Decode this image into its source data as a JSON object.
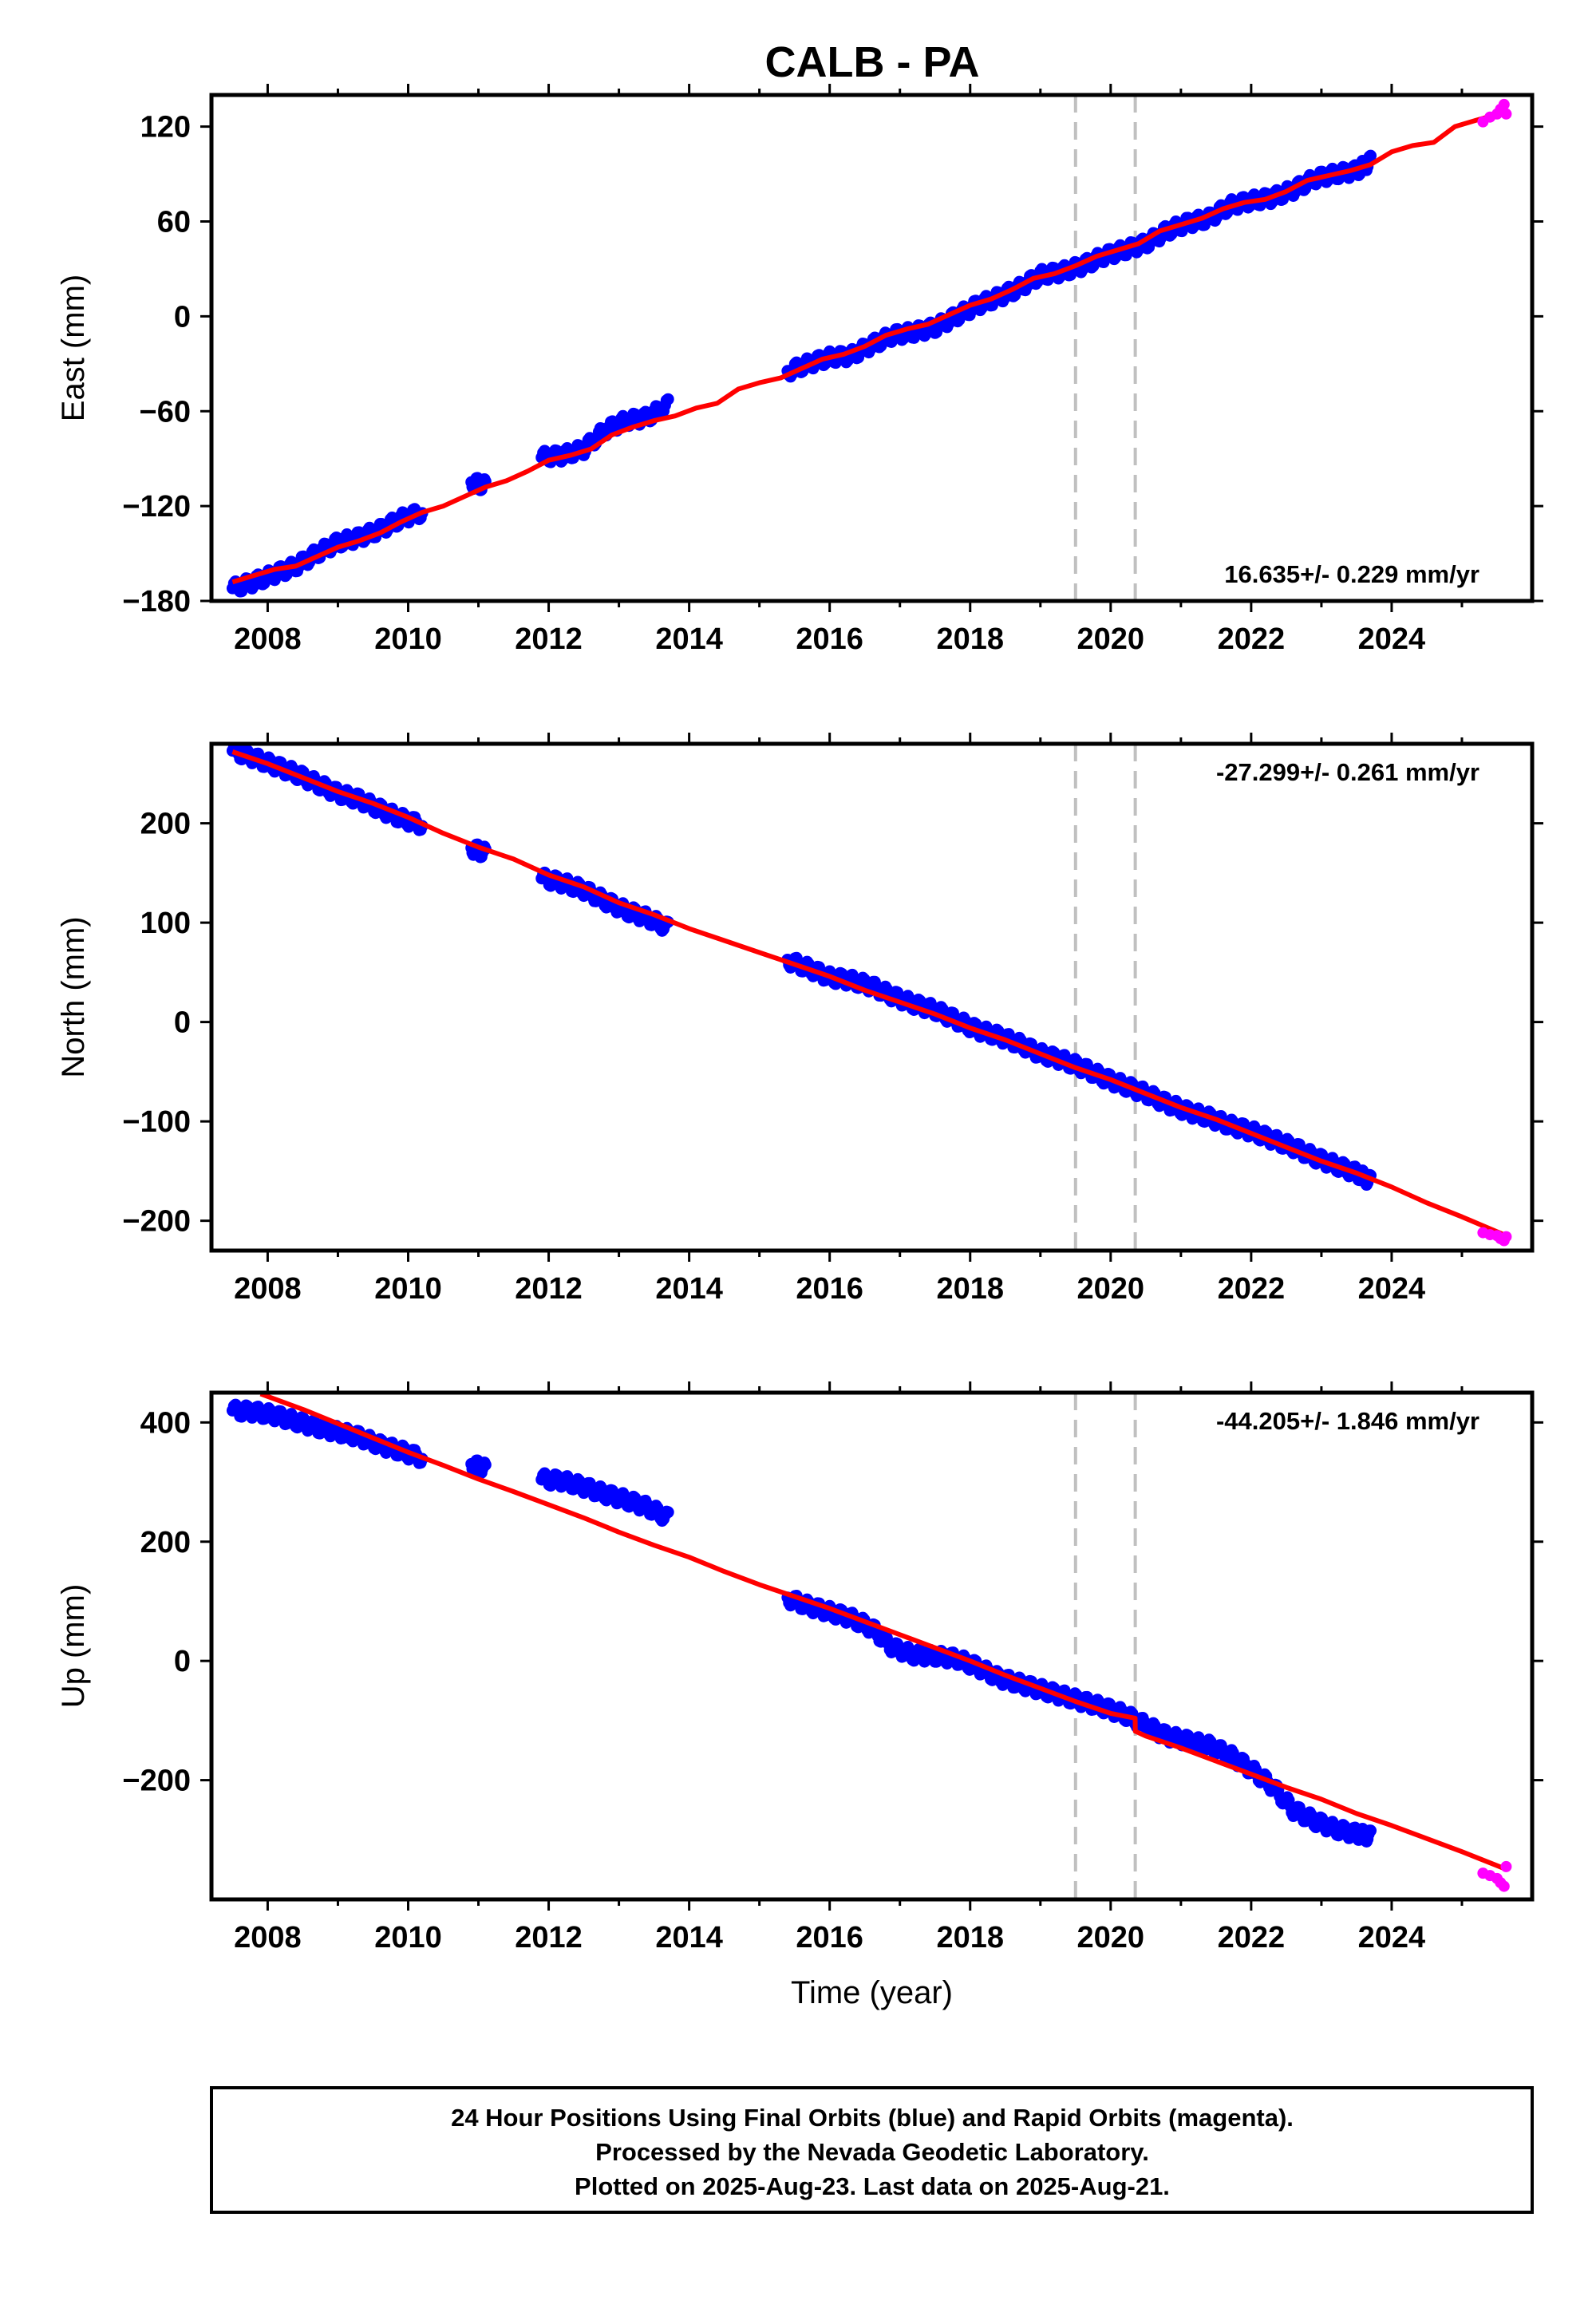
{
  "title": "CALB - PA",
  "colors": {
    "final": "#0000ff",
    "rapid": "#ff00ff",
    "model": "#ff0000",
    "event": "#c0c0c0"
  },
  "footer": {
    "lines": [
      "24 Hour Positions Using Final Orbits (blue) and Rapid Orbits (magenta).",
      "Processed by the Nevada Geodetic Laboratory.",
      "Plotted on 2025-Aug-23. Last data on 2025-Aug-21."
    ]
  },
  "chart_data": [
    {
      "type": "scatter",
      "ylabel": "East (mm)",
      "xlabel": "",
      "xlim": [
        2007.2,
        2026.0
      ],
      "ylim": [
        -180,
        140
      ],
      "xticks": [
        2008,
        2010,
        2012,
        2014,
        2016,
        2018,
        2020,
        2022,
        2024
      ],
      "xtick_labels": [
        "2008",
        "2010",
        "2012",
        "2014",
        "2016",
        "2018",
        "2020",
        "2022",
        "2024"
      ],
      "yticks": [
        -180,
        -120,
        -60,
        0,
        60,
        120
      ],
      "ytick_labels": [
        "−180",
        "−120",
        "−60",
        "0",
        "60",
        "120"
      ],
      "rate": "16.635+/- 0.229 mm/yr",
      "rate_position": "bottom-right",
      "event_lines": [
        2019.5,
        2020.35
      ],
      "final_segments": [
        {
          "x": [
            2007.5,
            2007.8,
            2008.1,
            2008.4,
            2008.7,
            2009.0,
            2009.3,
            2009.6,
            2009.9,
            2010.2
          ],
          "y": [
            -172,
            -168,
            -163,
            -158,
            -150,
            -143,
            -140,
            -135,
            -128,
            -124
          ]
        },
        {
          "x": [
            2010.9,
            2011.1
          ],
          "y": [
            -105,
            -107
          ]
        },
        {
          "x": [
            2011.9,
            2012.2,
            2012.5,
            2012.8,
            2013.1,
            2013.4,
            2013.7
          ],
          "y": [
            -89,
            -88,
            -84,
            -72,
            -66,
            -64,
            -56
          ]
        },
        {
          "x": [
            2015.4,
            2015.7,
            2016.0,
            2016.3,
            2016.6,
            2016.9,
            2017.2,
            2017.5,
            2017.8,
            2018.1,
            2018.4,
            2018.7,
            2019.0,
            2019.3,
            2019.6,
            2019.9,
            2020.2,
            2020.5,
            2020.8,
            2021.1,
            2021.4,
            2021.7,
            2022.0,
            2022.3,
            2022.6,
            2022.9,
            2023.2,
            2023.5,
            2023.7
          ],
          "y": [
            -35,
            -30,
            -26,
            -25,
            -18,
            -12,
            -10,
            -7,
            0,
            7,
            12,
            18,
            26,
            28,
            32,
            38,
            42,
            46,
            54,
            59,
            62,
            70,
            73,
            75,
            80,
            87,
            90,
            92,
            98
          ]
        }
      ],
      "rapid_segment": {
        "x": [
          2025.3,
          2025.4,
          2025.5,
          2025.55,
          2025.6,
          2025.63
        ],
        "y": [
          123,
          126,
          128,
          131,
          134,
          128
        ]
      },
      "model_line": {
        "x": [
          2007.5,
          2007.8,
          2008.1,
          2008.4,
          2008.7,
          2009.0,
          2009.3,
          2009.6,
          2009.9,
          2010.2,
          2010.5,
          2010.8,
          2011.1,
          2011.4,
          2011.7,
          2012.0,
          2012.3,
          2012.6,
          2012.9,
          2013.2,
          2013.5,
          2013.8,
          2014.1,
          2014.4,
          2014.7,
          2015.0,
          2015.3,
          2015.6,
          2015.9,
          2016.2,
          2016.5,
          2016.8,
          2017.1,
          2017.4,
          2017.7,
          2018.0,
          2018.3,
          2018.6,
          2018.9,
          2019.2,
          2019.5,
          2019.8,
          2020.1,
          2020.4,
          2020.7,
          2021.0,
          2021.3,
          2021.6,
          2021.9,
          2022.2,
          2022.5,
          2022.8,
          2023.1,
          2023.4,
          2023.7,
          2024.0,
          2024.3,
          2024.6,
          2024.9,
          2025.2,
          2025.6
        ],
        "y": [
          -168,
          -164,
          -160,
          -158,
          -152,
          -146,
          -142,
          -137,
          -130,
          -124,
          -120,
          -114,
          -108,
          -104,
          -98,
          -91,
          -88,
          -84,
          -75,
          -70,
          -66,
          -63,
          -58,
          -55,
          -46,
          -42,
          -39,
          -33,
          -27,
          -24,
          -19,
          -12,
          -8,
          -5,
          1,
          7,
          11,
          17,
          24,
          27,
          32,
          38,
          42,
          46,
          54,
          58,
          62,
          68,
          72,
          74,
          79,
          86,
          89,
          92,
          96,
          104,
          108,
          110,
          120,
          124,
          129
        ]
      }
    },
    {
      "type": "scatter",
      "ylabel": "North (mm)",
      "xlabel": "",
      "xlim": [
        2007.2,
        2026.0
      ],
      "ylim": [
        -230,
        280
      ],
      "xticks": [
        2008,
        2010,
        2012,
        2014,
        2016,
        2018,
        2020,
        2022,
        2024
      ],
      "xtick_labels": [
        "2008",
        "2010",
        "2012",
        "2014",
        "2016",
        "2018",
        "2020",
        "2022",
        "2024"
      ],
      "yticks": [
        -200,
        -100,
        0,
        100,
        200
      ],
      "ytick_labels": [
        "−200",
        "−100",
        "0",
        "100",
        "200"
      ],
      "rate": "-27.299+/- 0.261 mm/yr",
      "rate_position": "top-right",
      "event_lines": [
        2019.5,
        2020.35
      ],
      "final_segments": [
        {
          "x": [
            2007.5,
            2007.8,
            2008.1,
            2008.4,
            2008.7,
            2009.0,
            2009.3,
            2009.6,
            2009.9,
            2010.2
          ],
          "y": [
            273,
            266,
            258,
            250,
            240,
            230,
            224,
            214,
            205,
            198
          ]
        },
        {
          "x": [
            2010.9,
            2011.1
          ],
          "y": [
            175,
            170
          ]
        },
        {
          "x": [
            2011.9,
            2012.2,
            2012.5,
            2012.8,
            2013.1,
            2013.4,
            2013.7
          ],
          "y": [
            145,
            140,
            133,
            122,
            112,
            105,
            95
          ]
        },
        {
          "x": [
            2015.4,
            2015.7,
            2016.0,
            2016.3,
            2016.6,
            2016.9,
            2017.2,
            2017.5,
            2017.8,
            2018.1,
            2018.4,
            2018.7,
            2019.0,
            2019.3,
            2019.6,
            2019.9,
            2020.2,
            2020.5,
            2020.8,
            2021.1,
            2021.4,
            2021.7,
            2022.0,
            2022.3,
            2022.6,
            2022.9,
            2023.2,
            2023.5,
            2023.7
          ],
          "y": [
            62,
            54,
            45,
            42,
            36,
            26,
            18,
            12,
            2,
            -8,
            -14,
            -22,
            -32,
            -38,
            -46,
            -56,
            -64,
            -72,
            -82,
            -90,
            -96,
            -104,
            -110,
            -118,
            -126,
            -136,
            -144,
            -152,
            -160
          ]
        }
      ],
      "rapid_segment": {
        "x": [
          2025.3,
          2025.4,
          2025.5,
          2025.55,
          2025.6,
          2025.63
        ],
        "y": [
          -212,
          -214,
          -215,
          -218,
          -220,
          -216
        ]
      },
      "model_line": {
        "x": [
          2007.5,
          2008.0,
          2008.5,
          2009.0,
          2009.5,
          2010.0,
          2010.5,
          2011.0,
          2011.5,
          2012.0,
          2012.5,
          2013.0,
          2013.5,
          2014.0,
          2014.5,
          2015.0,
          2015.5,
          2016.0,
          2016.5,
          2017.0,
          2017.5,
          2018.0,
          2018.5,
          2019.0,
          2019.5,
          2020.0,
          2020.5,
          2021.0,
          2021.5,
          2022.0,
          2022.5,
          2023.0,
          2023.5,
          2024.0,
          2024.5,
          2025.0,
          2025.6
        ],
        "y": [
          272,
          260,
          246,
          232,
          220,
          206,
          190,
          176,
          164,
          148,
          136,
          120,
          108,
          94,
          82,
          70,
          58,
          46,
          32,
          20,
          8,
          -6,
          -18,
          -32,
          -46,
          -58,
          -72,
          -86,
          -98,
          -112,
          -126,
          -140,
          -152,
          -166,
          -182,
          -196,
          -214
        ]
      }
    },
    {
      "type": "scatter",
      "ylabel": "Up (mm)",
      "xlabel": "Time (year)",
      "xlim": [
        2007.2,
        2026.0
      ],
      "ylim": [
        -400,
        450
      ],
      "xticks": [
        2008,
        2010,
        2012,
        2014,
        2016,
        2018,
        2020,
        2022,
        2024
      ],
      "xtick_labels": [
        "2008",
        "2010",
        "2012",
        "2014",
        "2016",
        "2018",
        "2020",
        "2022",
        "2024"
      ],
      "yticks": [
        -200,
        0,
        200,
        400
      ],
      "ytick_labels": [
        "−200",
        "0",
        "200",
        "400"
      ],
      "rate": "-44.205+/- 1.846 mm/yr",
      "rate_position": "top-right",
      "event_lines": [
        2019.5,
        2020.35
      ],
      "final_segments": [
        {
          "x": [
            2007.5,
            2007.8,
            2008.1,
            2008.4,
            2008.7,
            2009.0,
            2009.3,
            2009.6,
            2009.9,
            2010.2
          ],
          "y": [
            420,
            418,
            412,
            402,
            392,
            384,
            376,
            362,
            352,
            340
          ]
        },
        {
          "x": [
            2010.9,
            2011.1
          ],
          "y": [
            330,
            322
          ]
        },
        {
          "x": [
            2011.9,
            2012.2,
            2012.5,
            2012.8,
            2013.1,
            2013.4,
            2013.7
          ],
          "y": [
            305,
            302,
            292,
            280,
            270,
            258,
            240
          ]
        },
        {
          "x": [
            2015.4,
            2015.7,
            2016.0,
            2016.3,
            2016.6,
            2016.9,
            2017.2,
            2017.5,
            2017.8,
            2018.1,
            2018.4,
            2018.7,
            2019.0,
            2019.3,
            2019.6,
            2019.9,
            2020.2,
            2020.5,
            2020.8,
            2021.1,
            2021.4,
            2021.7,
            2022.0,
            2022.3,
            2022.6,
            2022.9,
            2023.2,
            2023.5,
            2023.7
          ],
          "y": [
            105,
            92,
            82,
            72,
            55,
            22,
            10,
            8,
            4,
            -10,
            -28,
            -38,
            -48,
            -58,
            -68,
            -78,
            -90,
            -108,
            -126,
            -134,
            -142,
            -158,
            -182,
            -210,
            -250,
            -268,
            -282,
            -290,
            -294
          ]
        }
      ],
      "rapid_segment": {
        "x": [
          2025.3,
          2025.4,
          2025.5,
          2025.55,
          2025.6,
          2025.63
        ],
        "y": [
          -356,
          -360,
          -365,
          -372,
          -378,
          -345
        ]
      },
      "model_line": {
        "x": [
          2007.9,
          2008.5,
          2009.0,
          2009.5,
          2010.0,
          2010.5,
          2011.0,
          2011.5,
          2012.0,
          2012.5,
          2013.0,
          2013.5,
          2014.0,
          2014.5,
          2015.0,
          2015.5,
          2016.0,
          2016.5,
          2017.0,
          2017.5,
          2018.0,
          2018.5,
          2019.0,
          2019.5,
          2020.0,
          2020.349,
          2020.351,
          2020.5,
          2021.0,
          2021.5,
          2022.0,
          2022.5,
          2023.0,
          2023.5,
          2024.0,
          2024.5,
          2025.0,
          2025.6
        ],
        "y": [
          448,
          422,
          398,
          374,
          350,
          328,
          305,
          284,
          262,
          240,
          216,
          194,
          174,
          150,
          128,
          108,
          88,
          66,
          44,
          22,
          0,
          -24,
          -46,
          -68,
          -88,
          -96,
          -118,
          -126,
          -146,
          -168,
          -190,
          -212,
          -232,
          -256,
          -276,
          -298,
          -320,
          -348
        ]
      }
    }
  ]
}
